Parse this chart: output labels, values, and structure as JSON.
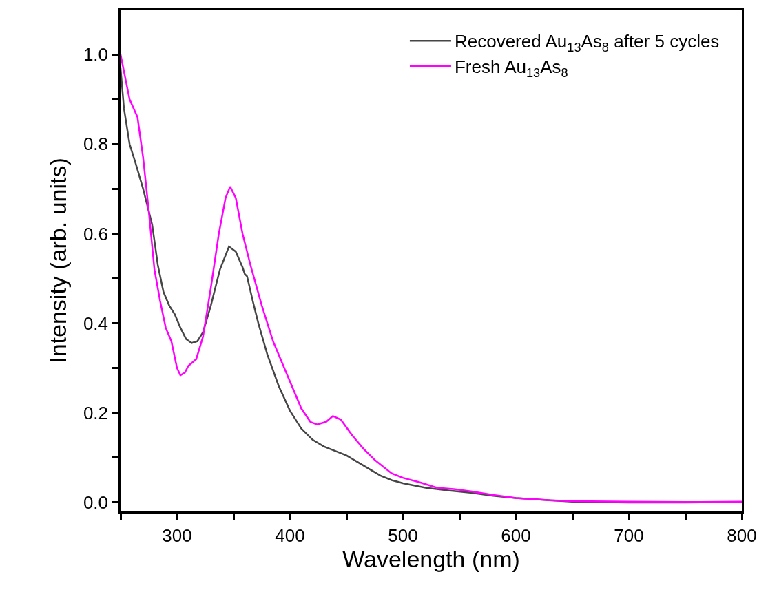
{
  "chart_data": {
    "type": "line",
    "xlabel": "Wavelength (nm)",
    "ylabel": "Intensity (arb. units)",
    "xlim": [
      250,
      800
    ],
    "ylim": [
      -0.02,
      1.1
    ],
    "xticks": [
      {
        "value": 250,
        "label": null
      },
      300,
      {
        "value": 350,
        "label": null
      },
      400,
      {
        "value": 450,
        "label": null
      },
      500,
      {
        "value": 550,
        "label": null
      },
      600,
      {
        "value": 650,
        "label": null
      },
      700,
      {
        "value": 750,
        "label": null
      },
      800
    ],
    "yticks": [
      "0.0",
      {
        "value": 0.1,
        "label": null
      },
      0.2,
      {
        "value": 0.3,
        "label": null
      },
      0.4,
      {
        "value": 0.5,
        "label": null
      },
      0.6,
      {
        "value": 0.7,
        "label": null
      },
      0.8,
      {
        "value": 0.9,
        "label": null
      },
      "1.0"
    ],
    "legend": "top right",
    "marker": "none",
    "line_style": "solid",
    "series": [
      {
        "name": "Recovered Au$_{13}$As$_{8}$ after 5 cycles",
        "color": "#464646",
        "x": [
          250,
          253,
          258,
          263,
          270,
          278,
          283,
          288,
          293,
          298,
          303,
          308,
          313,
          318,
          323,
          330,
          338,
          346,
          352,
          358,
          360,
          362,
          367,
          372,
          380,
          390,
          400,
          410,
          420,
          430,
          440,
          450,
          460,
          470,
          480,
          490,
          500,
          520,
          540,
          560,
          580,
          600,
          630,
          650,
          700,
          750,
          800
        ],
        "values": [
          0.97,
          0.88,
          0.8,
          0.76,
          0.7,
          0.62,
          0.53,
          0.47,
          0.44,
          0.42,
          0.39,
          0.365,
          0.356,
          0.36,
          0.38,
          0.44,
          0.52,
          0.571,
          0.56,
          0.525,
          0.51,
          0.505,
          0.45,
          0.4,
          0.33,
          0.26,
          0.205,
          0.165,
          0.14,
          0.125,
          0.115,
          0.105,
          0.09,
          0.075,
          0.06,
          0.05,
          0.043,
          0.033,
          0.027,
          0.022,
          0.015,
          0.01,
          0.005,
          0.002,
          0.0,
          0.0,
          0.001
        ]
      },
      {
        "name": "Fresh Au$_{13}$As$_{8}$",
        "color": "#ff00ff",
        "x": [
          250,
          258,
          265,
          270,
          275,
          280,
          285,
          290,
          295,
          300,
          303,
          307,
          310,
          317,
          323,
          330,
          337,
          343,
          347,
          352,
          358,
          365,
          375,
          385,
          395,
          400,
          410,
          418,
          424,
          432,
          438,
          445,
          455,
          465,
          475,
          490,
          500,
          515,
          530,
          545,
          560,
          580,
          600,
          630,
          650,
          700,
          750,
          800
        ],
        "values": [
          1.0,
          0.9,
          0.86,
          0.77,
          0.65,
          0.52,
          0.45,
          0.39,
          0.36,
          0.3,
          0.284,
          0.29,
          0.305,
          0.32,
          0.37,
          0.48,
          0.6,
          0.68,
          0.705,
          0.68,
          0.6,
          0.53,
          0.44,
          0.36,
          0.3,
          0.27,
          0.21,
          0.18,
          0.174,
          0.18,
          0.193,
          0.185,
          0.15,
          0.12,
          0.095,
          0.065,
          0.055,
          0.045,
          0.033,
          0.03,
          0.025,
          0.017,
          0.01,
          0.005,
          0.003,
          0.002,
          0.001,
          0.002
        ]
      }
    ]
  }
}
